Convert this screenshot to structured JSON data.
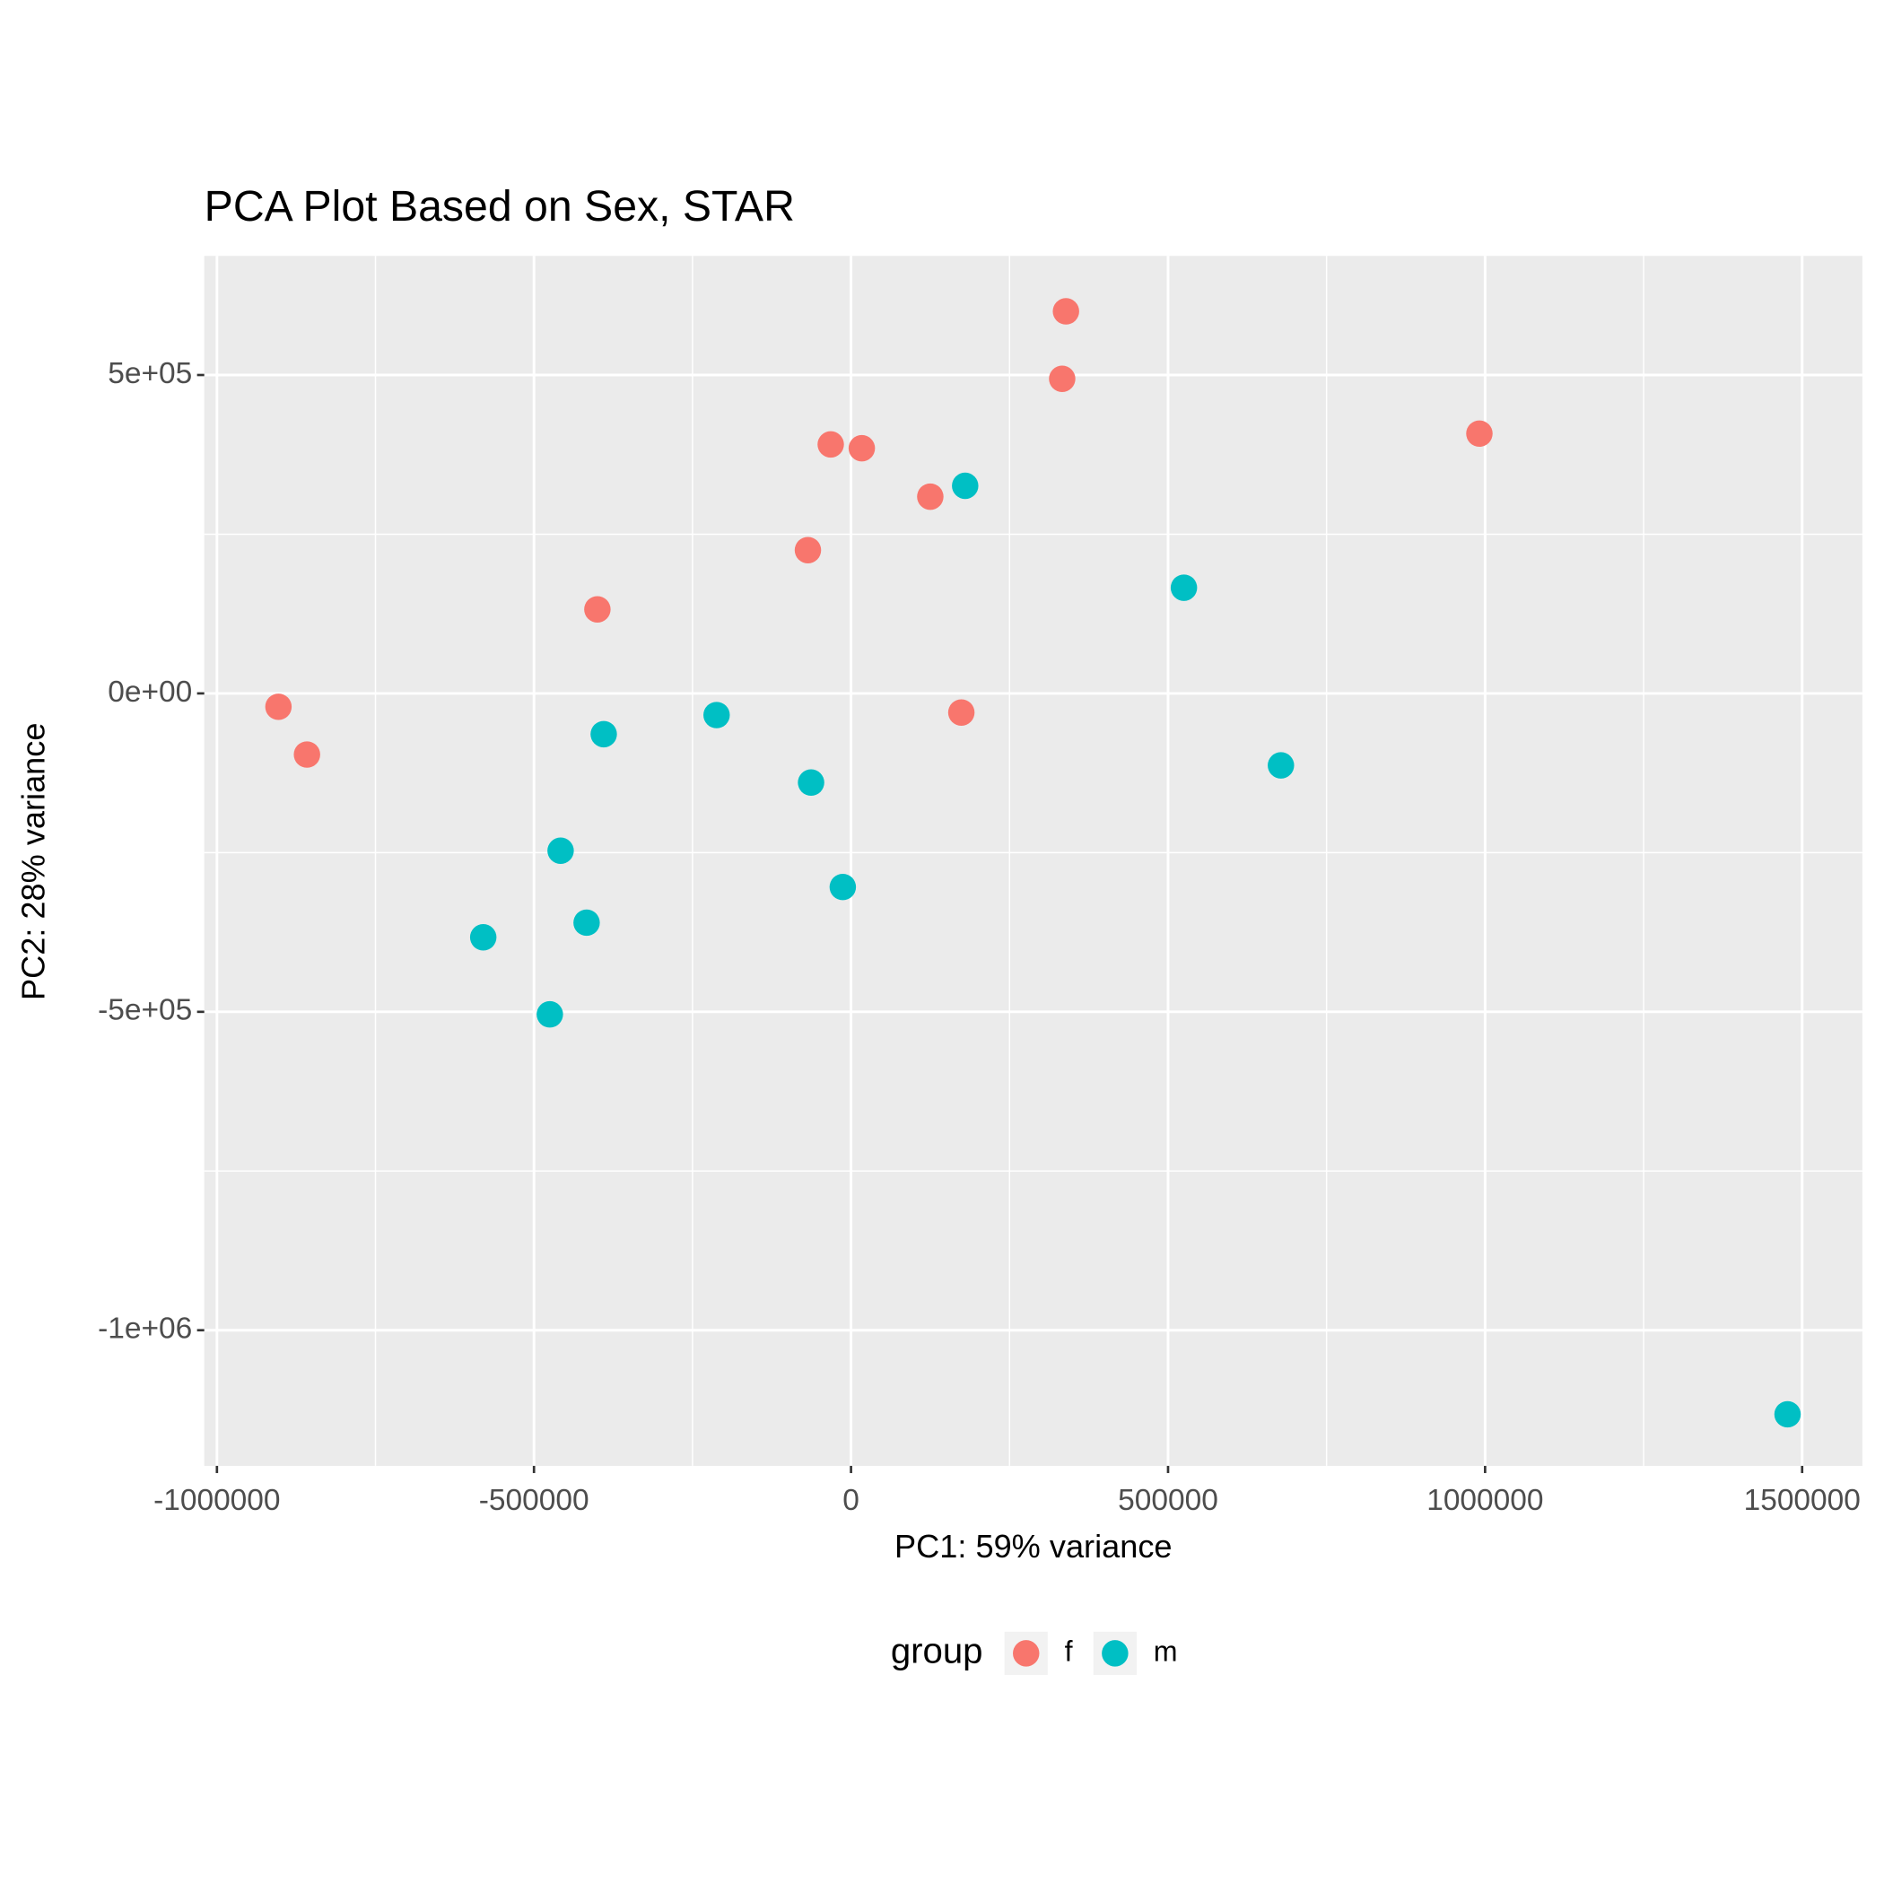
{
  "chart_data": {
    "type": "scatter",
    "title": "PCA Plot Based on Sex, STAR",
    "x_label": "PC1: 59% variance",
    "y_label": "PC2: 28% variance",
    "legend_title": "group",
    "legend_position": "bottom",
    "grid": true,
    "background": "#ebebeb",
    "xlim": [
      -1020000,
      1595000
    ],
    "ylim": [
      -1213000,
      687000
    ],
    "xticks": [
      -1000000,
      -500000,
      0,
      500000,
      1000000,
      1500000
    ],
    "xminorticks": [
      -750000,
      -250000,
      250000,
      750000,
      1250000
    ],
    "yticks": [
      {
        "value": 500000,
        "label": "5e+05"
      },
      {
        "value": 0,
        "label": "0e+00"
      },
      {
        "value": -500000,
        "label": "-5e+05"
      },
      {
        "value": -1000000,
        "label": "-1e+06"
      }
    ],
    "yminorticks": [
      250000,
      -250000,
      -750000
    ],
    "series": [
      {
        "name": "f",
        "color": "#f8766d",
        "x": [
          339000,
          333000,
          991000,
          -32000,
          17000,
          125000,
          -68000,
          -400000,
          -903000,
          -858000,
          174000
        ],
        "y": [
          600000,
          494000,
          408000,
          391000,
          385000,
          309000,
          225000,
          132000,
          -21000,
          -96000,
          -30000
        ]
      },
      {
        "name": "m",
        "color": "#00bfc4",
        "x": [
          180000,
          525000,
          -212000,
          -390000,
          678000,
          -63000,
          -458000,
          -13000,
          -417000,
          -580000,
          -475000,
          1477000
        ],
        "y": [
          326000,
          166000,
          -34000,
          -64000,
          -113000,
          -140000,
          -247000,
          -304000,
          -360000,
          -383000,
          -504000,
          -1132000
        ]
      }
    ]
  }
}
